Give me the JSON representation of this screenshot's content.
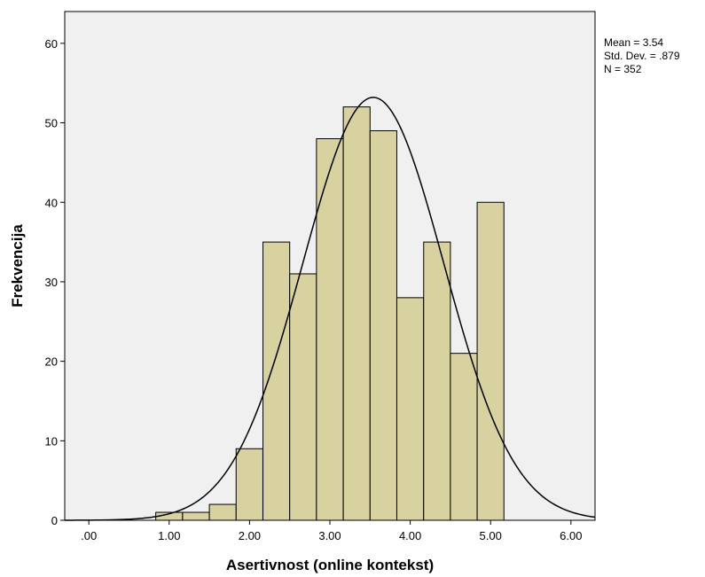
{
  "chart_data": {
    "type": "bar",
    "subtype": "histogram",
    "xlabel": "Asertivnost (online kontekst)",
    "ylabel": "Frekvencija",
    "xlim": [
      -0.3,
      6.3
    ],
    "ylim": [
      0,
      64
    ],
    "grid": false,
    "bin_width": 0.333,
    "bar_color": "#d7d2a0",
    "plot_background": "#f0f0f0",
    "curve": "normal",
    "x_ticks": [
      0,
      1,
      2,
      3,
      4,
      5,
      6
    ],
    "x_tick_labels": [
      ".00",
      "1.00",
      "2.00",
      "3.00",
      "4.00",
      "5.00",
      "6.00"
    ],
    "y_ticks": [
      0,
      10,
      20,
      30,
      40,
      50,
      60
    ],
    "y_tick_labels": [
      "0",
      "10",
      "20",
      "30",
      "40",
      "50",
      "60"
    ],
    "bins": [
      {
        "x0": 0.833,
        "value": 1
      },
      {
        "x0": 1.167,
        "value": 1
      },
      {
        "x0": 1.5,
        "value": 2
      },
      {
        "x0": 1.833,
        "value": 9
      },
      {
        "x0": 2.167,
        "value": 35
      },
      {
        "x0": 2.5,
        "value": 31
      },
      {
        "x0": 2.833,
        "value": 48
      },
      {
        "x0": 3.167,
        "value": 52
      },
      {
        "x0": 3.5,
        "value": 49
      },
      {
        "x0": 3.833,
        "value": 28
      },
      {
        "x0": 4.167,
        "value": 35
      },
      {
        "x0": 4.5,
        "value": 21
      },
      {
        "x0": 4.833,
        "value": 40
      }
    ],
    "stats": {
      "mean_value": 3.54,
      "sd_value": 0.879,
      "n_value": 352,
      "mean_text": "Mean = 3.54",
      "sd_text": "Std. Dev. = .879",
      "n_text": "N = 352"
    }
  }
}
